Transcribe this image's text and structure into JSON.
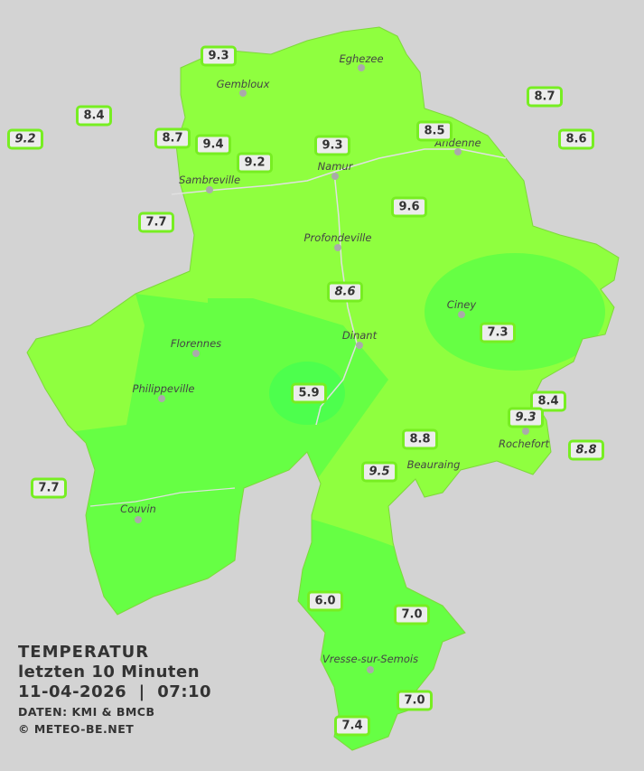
{
  "legend": {
    "title": "TEMPERATUR",
    "subtitle": "letzten 10 Minuten",
    "datetime": "11-04-2026  |  07:10",
    "source": "DATEN: KMI & BMCB",
    "copyright": "© METEO-BE.NET"
  },
  "colors": {
    "background": "#d3d3d3",
    "zone_warm": "#8fff3f",
    "zone_mild": "#66ff44",
    "zone_cool": "#4dff4d",
    "label_border": "#77ee22"
  },
  "cities": [
    {
      "name": "Eghezee"
    },
    {
      "name": "Gembloux"
    },
    {
      "name": "Andenne"
    },
    {
      "name": "Namur"
    },
    {
      "name": "Sambreville"
    },
    {
      "name": "Profondeville"
    },
    {
      "name": "Ciney"
    },
    {
      "name": "Dinant"
    },
    {
      "name": "Florennes"
    },
    {
      "name": "Philippeville"
    },
    {
      "name": "Rochefort"
    },
    {
      "name": "Beauraing"
    },
    {
      "name": "Couvin"
    },
    {
      "name": "Vresse-sur-Semois"
    }
  ],
  "stations": [
    {
      "value": "9.3"
    },
    {
      "value": "8.4"
    },
    {
      "value": "9.2",
      "italic": true
    },
    {
      "value": "8.7"
    },
    {
      "value": "9.4"
    },
    {
      "value": "9.2"
    },
    {
      "value": "9.3"
    },
    {
      "value": "8.5"
    },
    {
      "value": "8.7"
    },
    {
      "value": "8.6"
    },
    {
      "value": "7.7"
    },
    {
      "value": "9.6"
    },
    {
      "value": "8.6",
      "italic": true
    },
    {
      "value": "7.3"
    },
    {
      "value": "5.9"
    },
    {
      "value": "8.4"
    },
    {
      "value": "9.3",
      "italic": true
    },
    {
      "value": "8.8"
    },
    {
      "value": "8.8",
      "italic": true
    },
    {
      "value": "9.5",
      "italic": true
    },
    {
      "value": "7.7"
    },
    {
      "value": "6.0"
    },
    {
      "value": "7.0"
    },
    {
      "value": "7.0"
    },
    {
      "value": "7.4"
    }
  ]
}
